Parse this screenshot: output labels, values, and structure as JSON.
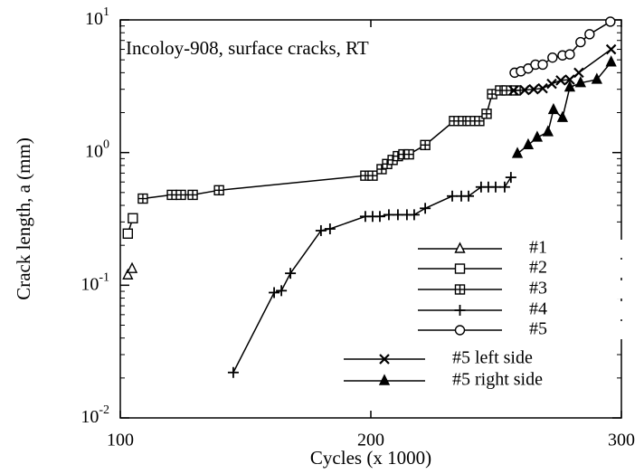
{
  "chart_data": {
    "type": "line",
    "annotation": "Incoloy-908, surface cracks, RT",
    "xlabel": "Cycles (x 1000)",
    "ylabel": "Crack length, a (mm)",
    "xlim": [
      100,
      300
    ],
    "xticks": [
      100,
      200,
      300
    ],
    "ylim": [
      0.01,
      10
    ],
    "log_y": true,
    "yticks": [
      {
        "value": 0.01,
        "label": "10^-2"
      },
      {
        "value": 0.1,
        "label": "10^-1"
      },
      {
        "value": 1,
        "label": "10^0"
      },
      {
        "value": 10,
        "label": "10^1"
      }
    ],
    "color": "#000000",
    "series": [
      {
        "name": "#1",
        "marker": "triangle-open",
        "x": [
          103,
          104.7
        ],
        "values": [
          0.119,
          0.133
        ]
      },
      {
        "name": "#2",
        "marker": "square-open",
        "x": [
          103,
          105
        ],
        "values": [
          0.245,
          0.32
        ]
      },
      {
        "name": "#3",
        "marker": "square-grid",
        "x": [
          109,
          120.6,
          124.2,
          128.9,
          139.4,
          197.8,
          200.7,
          204.3,
          206.5,
          208.7,
          210.8,
          213,
          215.2,
          221.7,
          233.2,
          236.8,
          239.7,
          243.3,
          246.2,
          248.4,
          251.6,
          254.2,
          257.8
        ],
        "values": [
          0.45,
          0.48,
          0.48,
          0.48,
          0.52,
          0.67,
          0.67,
          0.75,
          0.82,
          0.88,
          0.94,
          0.97,
          0.97,
          1.14,
          1.73,
          1.73,
          1.73,
          1.73,
          1.96,
          2.76,
          2.94,
          2.94,
          2.94
        ]
      },
      {
        "name": "#4",
        "marker": "plus",
        "x": [
          145.1,
          161.4,
          164.3,
          167.9,
          180.1,
          183.7,
          197.8,
          200.7,
          203.6,
          207.2,
          210.8,
          214.4,
          217.3,
          221.7,
          232.5,
          236.1,
          239,
          244,
          246.9,
          249.8,
          253.4,
          255.9
        ],
        "values": [
          0.022,
          0.088,
          0.091,
          0.123,
          0.258,
          0.266,
          0.33,
          0.33,
          0.33,
          0.34,
          0.34,
          0.34,
          0.34,
          0.38,
          0.47,
          0.47,
          0.47,
          0.55,
          0.55,
          0.55,
          0.55,
          0.65
        ]
      },
      {
        "name": "#5",
        "marker": "circle-open",
        "x": [
          257.4,
          259.9,
          262.8,
          265.7,
          268.6,
          272.5,
          276.5,
          279.4,
          283.7,
          287.3,
          295.6
        ],
        "values": [
          4.0,
          4.1,
          4.3,
          4.6,
          4.6,
          5.2,
          5.4,
          5.5,
          6.8,
          7.8,
          9.7
        ]
      },
      {
        "name": "#5 left side",
        "marker": "x",
        "x": [
          257,
          261.4,
          265,
          268.6,
          272.2,
          275.8,
          279.4,
          283,
          295.9
        ],
        "values": [
          2.94,
          2.96,
          3.0,
          3.05,
          3.3,
          3.5,
          3.55,
          4.0,
          6.0
        ]
      },
      {
        "name": "#5 right side",
        "marker": "triangle-filled",
        "x": [
          258.5,
          262.8,
          266.4,
          270.7,
          272.9,
          276.5,
          279.4,
          283.7,
          290.2,
          295.9
        ],
        "values": [
          0.98,
          1.14,
          1.3,
          1.43,
          2.1,
          1.83,
          3.1,
          3.35,
          3.55,
          4.8
        ]
      }
    ]
  }
}
